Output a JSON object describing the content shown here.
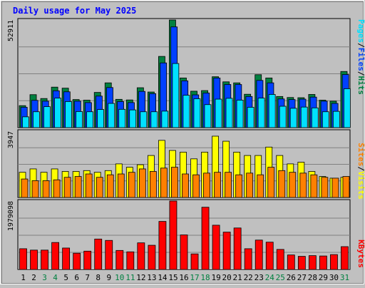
{
  "title": "Daily usage for May 2025",
  "colors": {
    "background": "#c0c0c0",
    "plot_background": "#c0c0c0",
    "grid": "#808080",
    "title": "#0000ff",
    "hits": "#008040",
    "files": "#0040ff",
    "pages": "#00e0ff",
    "visits": "#ffff00",
    "sites": "#ff8000",
    "kbytes": "#ff0000",
    "weekend_label": "#008040",
    "weekday_label": "#000000"
  },
  "right_labels": {
    "pages": "Pages",
    "files": "Files",
    "hits": "Hits",
    "visits": "Visits",
    "sites": "Sites",
    "kbytes": "KBytes",
    "separator": "/"
  },
  "chart_data": [
    {
      "type": "bar",
      "panel": "hits-files-pages",
      "ymax_label": "52911",
      "ylim": [
        0,
        52911
      ],
      "categories": [
        "1",
        "2",
        "3",
        "4",
        "5",
        "6",
        "7",
        "8",
        "9",
        "10",
        "11",
        "12",
        "13",
        "14",
        "15",
        "16",
        "17",
        "18",
        "19",
        "20",
        "21",
        "22",
        "23",
        "24",
        "25",
        "26",
        "27",
        "28",
        "29",
        "30",
        "31"
      ],
      "weekend_days": [
        3,
        4,
        10,
        11,
        17,
        18,
        24,
        25,
        31
      ],
      "series": [
        {
          "name": "Hits",
          "values": [
            10800,
            16200,
            14300,
            19900,
            19400,
            13800,
            13500,
            17300,
            22000,
            13900,
            13600,
            19600,
            17500,
            35000,
            52900,
            24400,
            17900,
            18200,
            25000,
            22500,
            22000,
            16400,
            26000,
            24400,
            15300,
            14800,
            14700,
            16300,
            13500,
            13000,
            27600
          ]
        },
        {
          "name": "Files",
          "values": [
            10000,
            13400,
            13000,
            18100,
            17600,
            13000,
            12300,
            15500,
            19700,
            12800,
            12300,
            17800,
            16700,
            31800,
            49500,
            23000,
            16100,
            17000,
            24400,
            21200,
            21200,
            15300,
            23200,
            22000,
            14100,
            13800,
            14000,
            15000,
            13000,
            11900,
            26100
          ]
        },
        {
          "name": "Pages",
          "values": [
            5300,
            7800,
            10300,
            14500,
            12800,
            7900,
            7800,
            8900,
            11900,
            9000,
            8700,
            7800,
            7800,
            8100,
            31500,
            15900,
            14200,
            11300,
            14000,
            14400,
            13500,
            10000,
            14500,
            16300,
            10500,
            9500,
            10100,
            9700,
            7800,
            8000,
            19100
          ]
        }
      ]
    },
    {
      "type": "bar",
      "panel": "visits-sites",
      "ymax_label": "3947",
      "ylim": [
        0,
        3947
      ],
      "categories": [
        "1",
        "2",
        "3",
        "4",
        "5",
        "6",
        "7",
        "8",
        "9",
        "10",
        "11",
        "12",
        "13",
        "14",
        "15",
        "16",
        "17",
        "18",
        "19",
        "20",
        "21",
        "22",
        "23",
        "24",
        "25",
        "26",
        "27",
        "28",
        "29",
        "30",
        "31"
      ],
      "weekend_days": [
        3,
        4,
        10,
        11,
        17,
        18,
        24,
        25,
        31
      ],
      "series": [
        {
          "name": "Visits",
          "values": [
            1500,
            1700,
            1500,
            1700,
            1550,
            1550,
            1600,
            1500,
            1600,
            2000,
            1800,
            1950,
            2500,
            3400,
            2800,
            2700,
            2300,
            2700,
            3650,
            3350,
            2700,
            2500,
            2500,
            3000,
            2500,
            2000,
            2100,
            1550,
            1250,
            1150,
            1200
          ]
        },
        {
          "name": "Sites",
          "values": [
            1100,
            1000,
            1000,
            1050,
            1200,
            1250,
            1400,
            1200,
            1350,
            1400,
            1500,
            1700,
            1550,
            1750,
            1800,
            1400,
            1350,
            1450,
            1500,
            1500,
            1350,
            1450,
            1350,
            1800,
            1600,
            1500,
            1450,
            1350,
            1200,
            1150,
            1250
          ]
        }
      ]
    },
    {
      "type": "bar",
      "panel": "kbytes",
      "ymax_label": "1979098",
      "ylim": [
        0,
        1979098
      ],
      "categories": [
        "1",
        "2",
        "3",
        "4",
        "5",
        "6",
        "7",
        "8",
        "9",
        "10",
        "11",
        "12",
        "13",
        "14",
        "15",
        "16",
        "17",
        "18",
        "19",
        "20",
        "21",
        "22",
        "23",
        "24",
        "25",
        "26",
        "27",
        "28",
        "29",
        "30",
        "31"
      ],
      "weekend_days": [
        3,
        4,
        10,
        11,
        17,
        18,
        24,
        25,
        31
      ],
      "series": [
        {
          "name": "KBytes",
          "values": [
            600000,
            560000,
            560000,
            780000,
            620000,
            470000,
            530000,
            880000,
            840000,
            550000,
            510000,
            770000,
            700000,
            1390000,
            1980000,
            1000000,
            450000,
            1800000,
            1280000,
            1080000,
            1200000,
            600000,
            850000,
            790000,
            580000,
            420000,
            380000,
            400000,
            390000,
            430000,
            660000
          ]
        }
      ]
    }
  ]
}
